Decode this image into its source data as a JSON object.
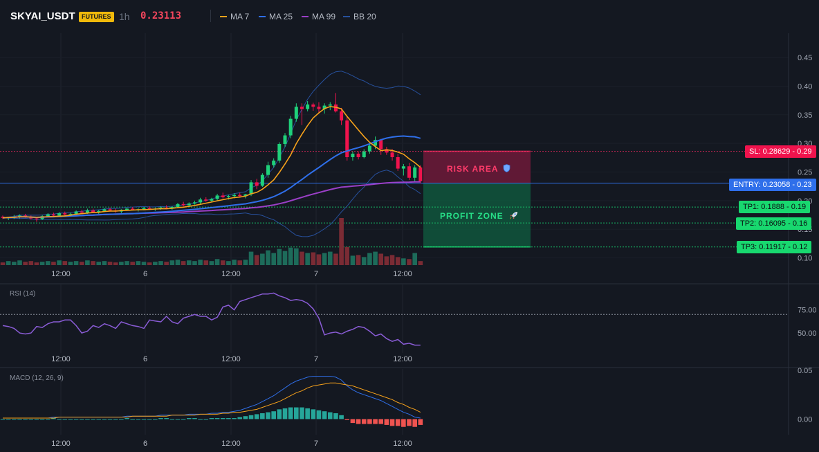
{
  "header": {
    "symbol": "SKYAI_USDT",
    "badge": "FUTURES",
    "interval": "1h",
    "price": "0.23113",
    "legend": [
      {
        "label": "MA 7",
        "color": "#f7a21b"
      },
      {
        "label": "MA 25",
        "color": "#2f6fea"
      },
      {
        "label": "MA 99",
        "color": "#9b3fc7"
      },
      {
        "label": "BB 20",
        "color": "#27509c"
      }
    ]
  },
  "levels": {
    "sl": {
      "label": "SL: 0.28629",
      "axis": "0.29",
      "value": 0.28629
    },
    "entry": {
      "label": "ENTRY: 0.23058",
      "axis": "0.23",
      "value": 0.23058
    },
    "tp1": {
      "label": "TP1: 0.1888",
      "axis": "0.19",
      "value": 0.1888
    },
    "tp2": {
      "label": "TP2: 0.16095",
      "axis": "0.16",
      "value": 0.16095
    },
    "tp3": {
      "label": "TP3: 0.11917",
      "axis": "0.12",
      "value": 0.11917
    }
  },
  "zones": {
    "risk": {
      "label": "RISK AREA",
      "icon": "shield-icon"
    },
    "profit": {
      "label": "PROFIT ZONE",
      "icon": "rocket-icon"
    }
  },
  "panels": {
    "rsi_title": "RSI (14)",
    "macd_title": "MACD (12, 26, 9)"
  },
  "chart_data": {
    "type": "candlestick",
    "x_ticks": [
      "12:00",
      "6",
      "12:00",
      "7",
      "12:00"
    ],
    "price_axis": {
      "ticks": [
        "0.45",
        "0.40",
        "0.35",
        "0.30",
        "0.25",
        "0.20",
        "0.15",
        "0.10"
      ],
      "range": [
        0.085,
        0.49
      ]
    },
    "candles": [
      [
        0.172,
        0.174,
        0.168,
        0.17
      ],
      [
        0.17,
        0.172,
        0.166,
        0.171
      ],
      [
        0.171,
        0.175,
        0.168,
        0.172
      ],
      [
        0.172,
        0.176,
        0.169,
        0.174
      ],
      [
        0.174,
        0.177,
        0.17,
        0.172
      ],
      [
        0.172,
        0.174,
        0.167,
        0.169
      ],
      [
        0.169,
        0.172,
        0.163,
        0.168
      ],
      [
        0.168,
        0.175,
        0.166,
        0.173
      ],
      [
        0.173,
        0.178,
        0.171,
        0.176
      ],
      [
        0.176,
        0.179,
        0.172,
        0.174
      ],
      [
        0.174,
        0.18,
        0.172,
        0.178
      ],
      [
        0.178,
        0.181,
        0.174,
        0.176
      ],
      [
        0.176,
        0.179,
        0.173,
        0.177
      ],
      [
        0.177,
        0.183,
        0.175,
        0.181
      ],
      [
        0.181,
        0.184,
        0.177,
        0.179
      ],
      [
        0.179,
        0.186,
        0.177,
        0.183
      ],
      [
        0.183,
        0.186,
        0.179,
        0.18
      ],
      [
        0.18,
        0.184,
        0.177,
        0.182
      ],
      [
        0.182,
        0.187,
        0.18,
        0.185
      ],
      [
        0.185,
        0.188,
        0.181,
        0.183
      ],
      [
        0.183,
        0.186,
        0.179,
        0.181
      ],
      [
        0.181,
        0.185,
        0.178,
        0.184
      ],
      [
        0.184,
        0.188,
        0.182,
        0.186
      ],
      [
        0.186,
        0.189,
        0.183,
        0.184
      ],
      [
        0.184,
        0.187,
        0.181,
        0.185
      ],
      [
        0.185,
        0.189,
        0.183,
        0.187
      ],
      [
        0.187,
        0.19,
        0.184,
        0.185
      ],
      [
        0.185,
        0.188,
        0.182,
        0.186
      ],
      [
        0.186,
        0.19,
        0.184,
        0.188
      ],
      [
        0.188,
        0.192,
        0.185,
        0.186
      ],
      [
        0.186,
        0.19,
        0.184,
        0.189
      ],
      [
        0.189,
        0.196,
        0.187,
        0.194
      ],
      [
        0.194,
        0.198,
        0.19,
        0.192
      ],
      [
        0.192,
        0.197,
        0.189,
        0.195
      ],
      [
        0.195,
        0.2,
        0.193,
        0.197
      ],
      [
        0.197,
        0.205,
        0.194,
        0.202
      ],
      [
        0.202,
        0.206,
        0.198,
        0.2
      ],
      [
        0.2,
        0.205,
        0.197,
        0.203
      ],
      [
        0.203,
        0.212,
        0.2,
        0.209
      ],
      [
        0.209,
        0.214,
        0.204,
        0.206
      ],
      [
        0.206,
        0.21,
        0.202,
        0.208
      ],
      [
        0.208,
        0.213,
        0.204,
        0.21
      ],
      [
        0.21,
        0.214,
        0.206,
        0.208
      ],
      [
        0.208,
        0.212,
        0.204,
        0.211
      ],
      [
        0.211,
        0.236,
        0.208,
        0.232
      ],
      [
        0.232,
        0.238,
        0.22,
        0.226
      ],
      [
        0.226,
        0.248,
        0.224,
        0.245
      ],
      [
        0.245,
        0.268,
        0.24,
        0.262
      ],
      [
        0.262,
        0.274,
        0.258,
        0.27
      ],
      [
        0.27,
        0.302,
        0.266,
        0.299
      ],
      [
        0.299,
        0.318,
        0.294,
        0.314
      ],
      [
        0.314,
        0.348,
        0.309,
        0.343
      ],
      [
        0.343,
        0.37,
        0.338,
        0.364
      ],
      [
        0.364,
        0.37,
        0.332,
        0.36
      ],
      [
        0.36,
        0.374,
        0.356,
        0.368
      ],
      [
        0.368,
        0.371,
        0.357,
        0.364
      ],
      [
        0.364,
        0.372,
        0.354,
        0.36
      ],
      [
        0.36,
        0.37,
        0.352,
        0.366
      ],
      [
        0.366,
        0.372,
        0.358,
        0.368
      ],
      [
        0.368,
        0.388,
        0.354,
        0.356
      ],
      [
        0.356,
        0.362,
        0.332,
        0.34
      ],
      [
        0.34,
        0.346,
        0.27,
        0.276
      ],
      [
        0.276,
        0.286,
        0.27,
        0.282
      ],
      [
        0.282,
        0.286,
        0.272,
        0.276
      ],
      [
        0.276,
        0.29,
        0.274,
        0.286
      ],
      [
        0.286,
        0.3,
        0.282,
        0.296
      ],
      [
        0.296,
        0.312,
        0.29,
        0.306
      ],
      [
        0.306,
        0.308,
        0.28,
        0.29
      ],
      [
        0.29,
        0.294,
        0.28,
        0.284
      ],
      [
        0.284,
        0.29,
        0.27,
        0.276
      ],
      [
        0.276,
        0.282,
        0.252,
        0.256
      ],
      [
        0.256,
        0.264,
        0.244,
        0.26
      ],
      [
        0.26,
        0.266,
        0.236,
        0.24
      ],
      [
        0.24,
        0.262,
        0.232,
        0.258
      ],
      [
        0.258,
        0.262,
        0.23,
        0.234
      ]
    ],
    "volume_scale_note": "relative",
    "volume": [
      4,
      6,
      5,
      7,
      5,
      6,
      4,
      5,
      6,
      5,
      7,
      6,
      5,
      6,
      5,
      7,
      6,
      5,
      6,
      5,
      4,
      5,
      6,
      5,
      6,
      5,
      4,
      5,
      6,
      5,
      7,
      8,
      6,
      7,
      6,
      8,
      7,
      6,
      9,
      7,
      6,
      8,
      7,
      8,
      20,
      15,
      17,
      22,
      18,
      24,
      21,
      26,
      25,
      20,
      18,
      19,
      16,
      18,
      20,
      17,
      70,
      27,
      14,
      15,
      12,
      18,
      20,
      17,
      13,
      15,
      12,
      10,
      9,
      18,
      6
    ],
    "rsi": {
      "ticks": [
        "75.00",
        "50.00"
      ],
      "range": [
        30,
        100
      ],
      "overbought": 70,
      "values": [
        58,
        57,
        55,
        50,
        49,
        50,
        57,
        56,
        60,
        62,
        62,
        64,
        64,
        58,
        50,
        52,
        58,
        56,
        60,
        58,
        55,
        62,
        60,
        58,
        57,
        55,
        64,
        63,
        62,
        68,
        62,
        60,
        66,
        68,
        70,
        68,
        68,
        64,
        67,
        78,
        80,
        75,
        84,
        86,
        88,
        90,
        92,
        92,
        93,
        90,
        88,
        85,
        86,
        85,
        82,
        76,
        66,
        48,
        50,
        51,
        49,
        52,
        54,
        57,
        56,
        52,
        47,
        49,
        44,
        41,
        43,
        38,
        39,
        37,
        37
      ]
    },
    "macd": {
      "ticks": [
        "0.05",
        "0.00"
      ],
      "range": [
        -0.016,
        0.05
      ],
      "macd_line": [
        0.001,
        0.001,
        0.001,
        0.001,
        0.001,
        0.001,
        0.001,
        0.001,
        0.001,
        0.002,
        0.002,
        0.002,
        0.002,
        0.002,
        0.002,
        0.002,
        0.002,
        0.002,
        0.002,
        0.002,
        0.002,
        0.002,
        0.003,
        0.003,
        0.003,
        0.003,
        0.003,
        0.003,
        0.004,
        0.004,
        0.004,
        0.004,
        0.004,
        0.005,
        0.005,
        0.005,
        0.005,
        0.006,
        0.006,
        0.007,
        0.007,
        0.008,
        0.009,
        0.011,
        0.013,
        0.015,
        0.018,
        0.021,
        0.024,
        0.028,
        0.032,
        0.036,
        0.039,
        0.041,
        0.043,
        0.044,
        0.044,
        0.044,
        0.044,
        0.043,
        0.04,
        0.034,
        0.03,
        0.027,
        0.025,
        0.023,
        0.021,
        0.019,
        0.016,
        0.013,
        0.01,
        0.007,
        0.005,
        0.002,
        0.001
      ],
      "signal_line": [
        0.001,
        0.001,
        0.001,
        0.001,
        0.001,
        0.001,
        0.001,
        0.001,
        0.001,
        0.001,
        0.002,
        0.002,
        0.002,
        0.002,
        0.002,
        0.002,
        0.002,
        0.002,
        0.002,
        0.002,
        0.002,
        0.002,
        0.002,
        0.003,
        0.003,
        0.003,
        0.003,
        0.003,
        0.003,
        0.003,
        0.004,
        0.004,
        0.004,
        0.004,
        0.004,
        0.005,
        0.005,
        0.005,
        0.005,
        0.006,
        0.006,
        0.007,
        0.007,
        0.008,
        0.009,
        0.01,
        0.012,
        0.014,
        0.016,
        0.018,
        0.021,
        0.024,
        0.027,
        0.029,
        0.032,
        0.034,
        0.035,
        0.036,
        0.037,
        0.037,
        0.036,
        0.035,
        0.034,
        0.032,
        0.03,
        0.028,
        0.026,
        0.024,
        0.022,
        0.02,
        0.017,
        0.015,
        0.012,
        0.01,
        0.007
      ]
    }
  }
}
